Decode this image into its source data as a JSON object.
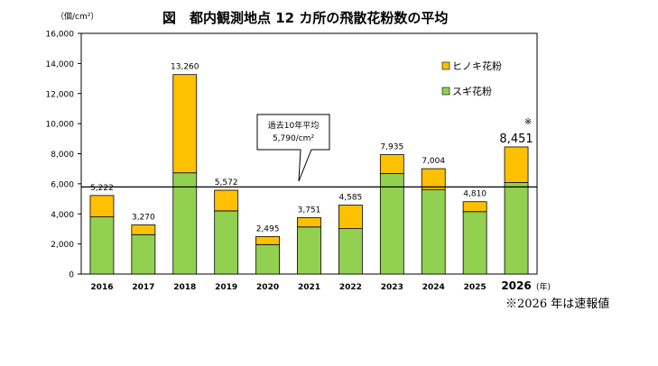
{
  "chart_data": {
    "type": "bar",
    "stacked": true,
    "title": "図　都内観測地点 12 カ所の飛散花粉数の平均",
    "unit_label": "（個/cm²）",
    "x_unit_label": "(年)",
    "categories": [
      "2016",
      "2017",
      "2018",
      "2019",
      "2020",
      "2021",
      "2022",
      "2023",
      "2024",
      "2025",
      "2026"
    ],
    "series": [
      {
        "name": "スギ花粉",
        "color": "#92D050",
        "values": [
          3800,
          2620,
          6730,
          4200,
          1960,
          3130,
          3020,
          6680,
          5620,
          4150,
          6080
        ]
      },
      {
        "name": "ヒノキ花粉",
        "color": "#FFC000",
        "values": [
          1422,
          650,
          6530,
          1372,
          535,
          621,
          1565,
          1255,
          1384,
          660,
          2371
        ]
      }
    ],
    "totals": [
      5222,
      3270,
      13260,
      5572,
      2495,
      3751,
      4585,
      7935,
      7004,
      4810,
      8451
    ],
    "total_labels": [
      "5,222",
      "3,270",
      "13,260",
      "5,572",
      "2,495",
      "3,751",
      "4,585",
      "7,935",
      "7,004",
      "4,810",
      "8,451"
    ],
    "highlight_category": "2026",
    "highlight_marker": "※",
    "ylim": [
      0,
      16000
    ],
    "yticks": [
      0,
      2000,
      4000,
      6000,
      8000,
      10000,
      12000,
      14000,
      16000
    ],
    "ytick_labels": [
      "0",
      "2,000",
      "4,000",
      "6,000",
      "8,000",
      "10,000",
      "12,000",
      "14,000",
      "16,000"
    ],
    "average_line": {
      "value": 5790,
      "label_line1": "過去10年平均",
      "label_line2": "5,790/cm²"
    },
    "legend_position": "top-right",
    "grid": false
  },
  "footnote": "※2026 年は速報値"
}
